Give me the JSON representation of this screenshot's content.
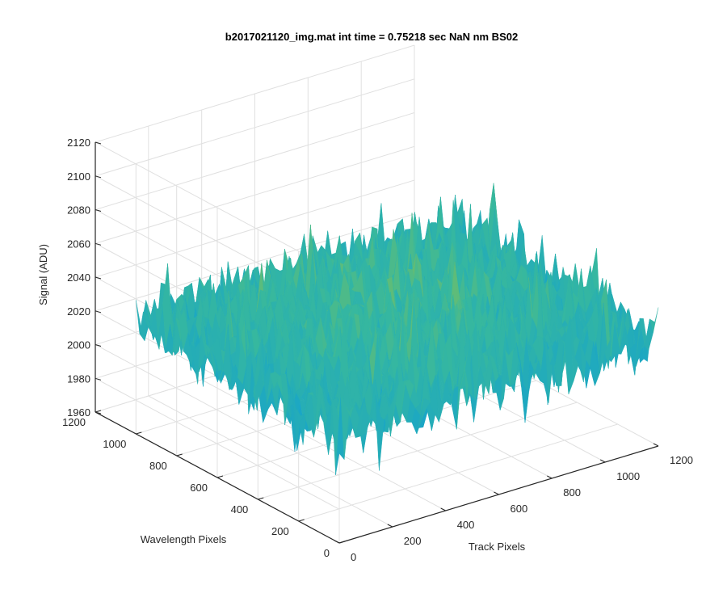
{
  "chart_data": {
    "type": "surface",
    "title": "b2017021120_img.mat int time = 0.75218 sec  NaN nm BS02",
    "xlabel": "Track Pixels",
    "ylabel": "Wavelength Pixels",
    "zlabel": "Signal (ADU)",
    "xlim": [
      0,
      1200
    ],
    "ylim": [
      0,
      1200
    ],
    "zlim": [
      1960,
      2120
    ],
    "x_ticks": [
      "0",
      "200",
      "400",
      "600",
      "800",
      "1000",
      "1200"
    ],
    "y_ticks": [
      "0",
      "200",
      "400",
      "600",
      "800",
      "1000",
      "1200"
    ],
    "z_ticks": [
      "1960",
      "1980",
      "2000",
      "2020",
      "2040",
      "2060",
      "2080",
      "2100",
      "2120"
    ],
    "data_extent": {
      "x": [
        0,
        1200
      ],
      "y": [
        0,
        1000
      ]
    },
    "mean_signal": 2025,
    "noise_amplitude": 30,
    "grid": true,
    "colormap": [
      "#0072bd",
      "#1aa6c6",
      "#37b89e",
      "#9fc33b",
      "#e6c02c"
    ],
    "view": {
      "azimuth": -37.5,
      "elevation": 30
    }
  }
}
